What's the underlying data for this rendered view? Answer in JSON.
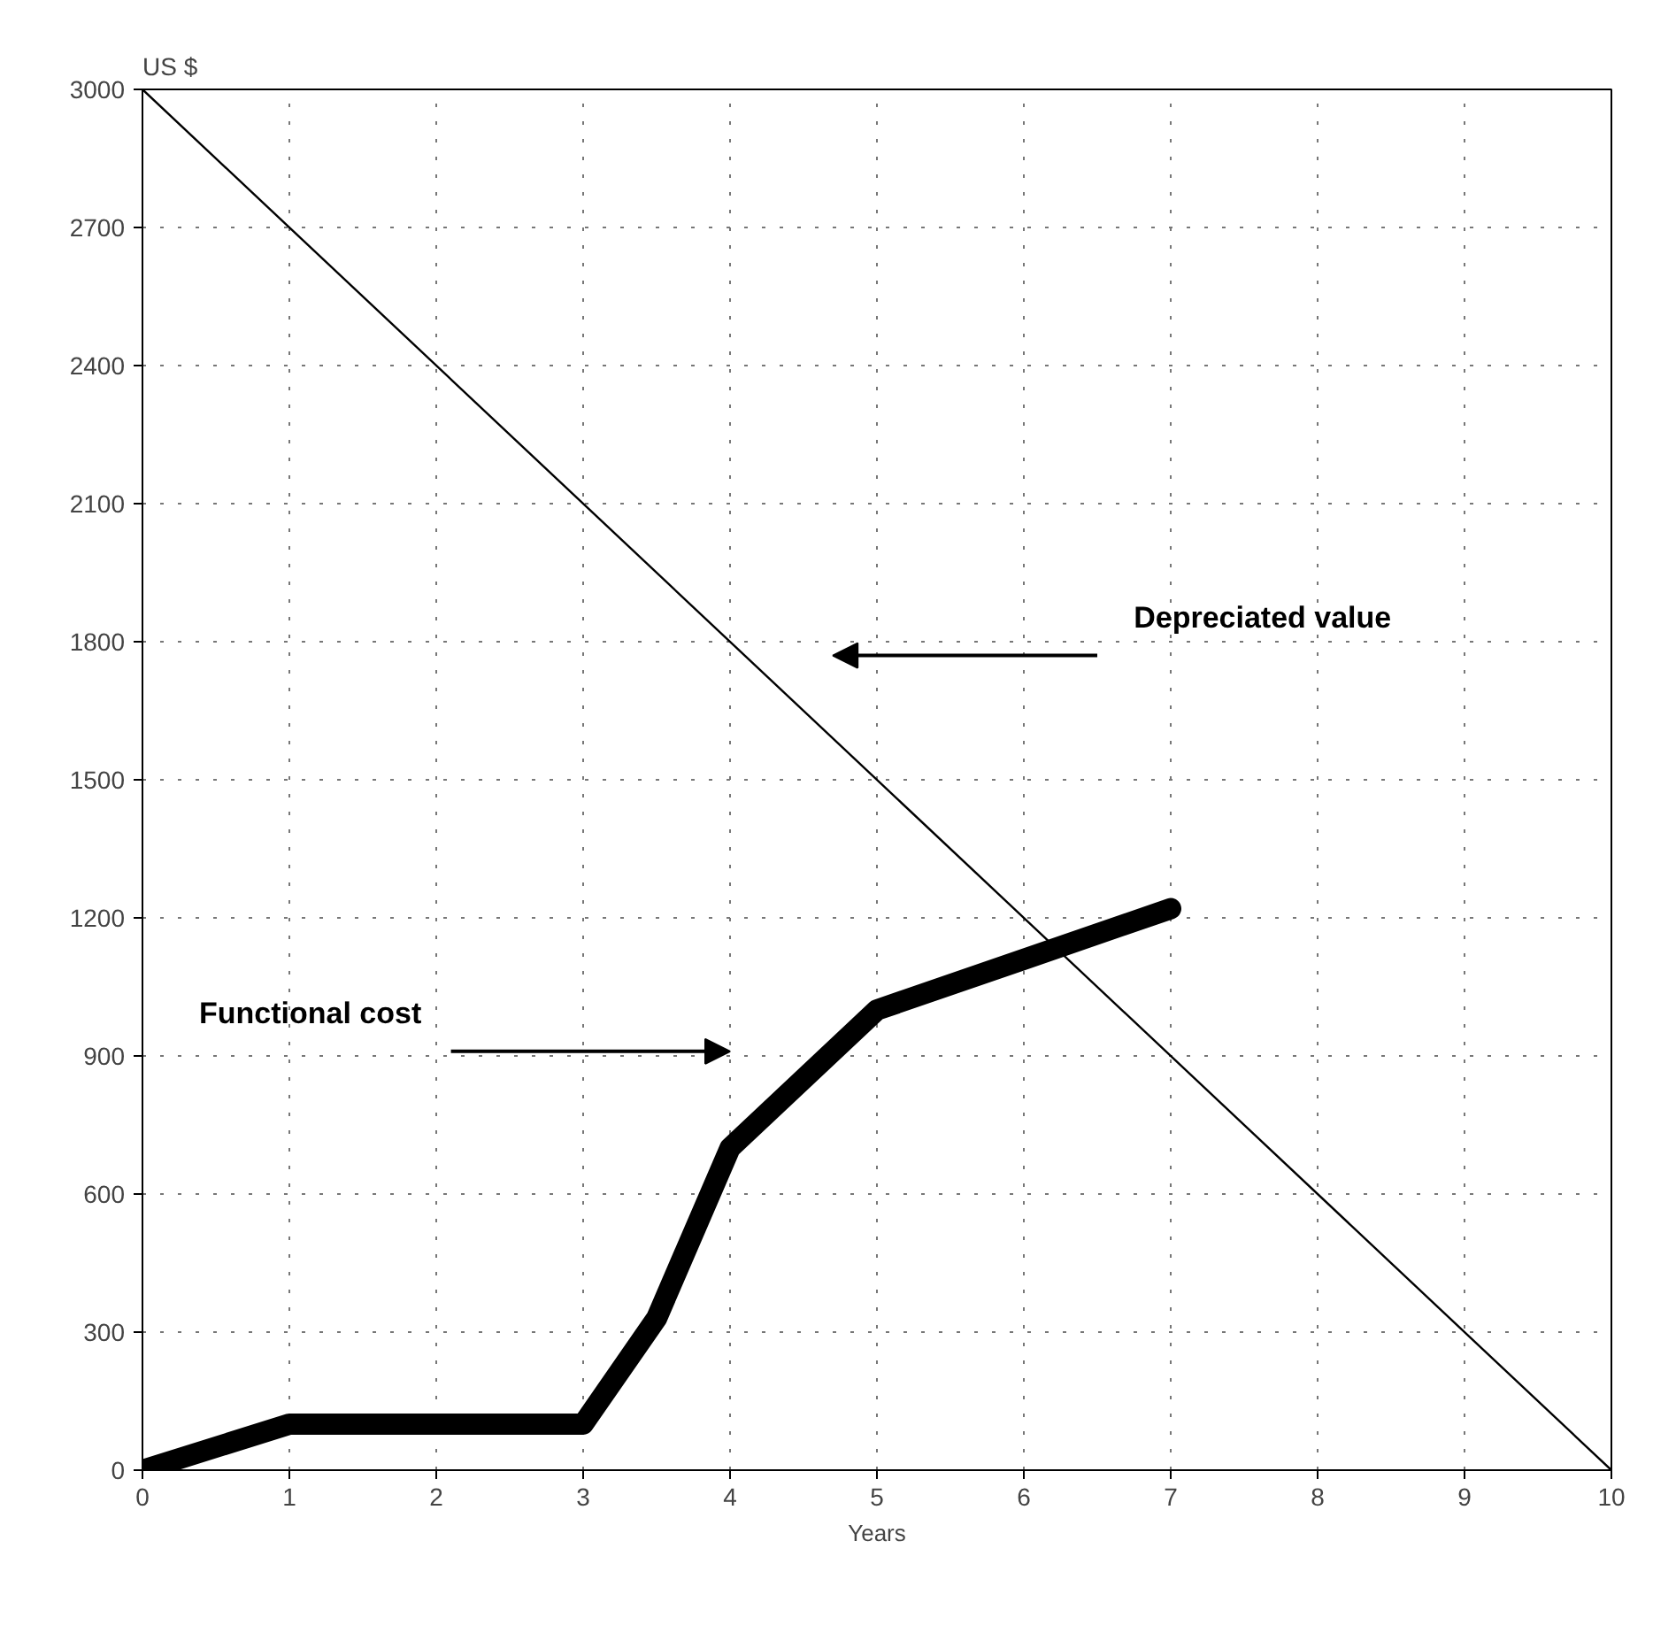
{
  "chart_data": {
    "type": "line",
    "xlabel": "Years",
    "ylabel": "US $",
    "x": [
      0,
      1,
      3,
      3.5,
      4,
      5,
      6,
      7
    ],
    "series": [
      {
        "color": "#000000",
        "values": [
          0,
          100,
          100,
          330,
          700,
          1000,
          1110,
          1220
        ]
      },
      {
        "color": "#000000",
        "x": [
          0,
          10
        ],
        "values": [
          3000,
          0
        ]
      }
    ],
    "xlim": [
      0,
      10
    ],
    "ylim": [
      0,
      3000
    ],
    "xticks": [
      0,
      1,
      2,
      3,
      4,
      5,
      6,
      7,
      8,
      9,
      10
    ],
    "yticks": [
      0,
      300,
      600,
      900,
      1200,
      1500,
      1800,
      2100,
      2400,
      2700,
      3000
    ],
    "grid": true,
    "line_style": "solid",
    "marker": "none",
    "annotations": [
      "Functional cost",
      "Depreciated value"
    ]
  }
}
